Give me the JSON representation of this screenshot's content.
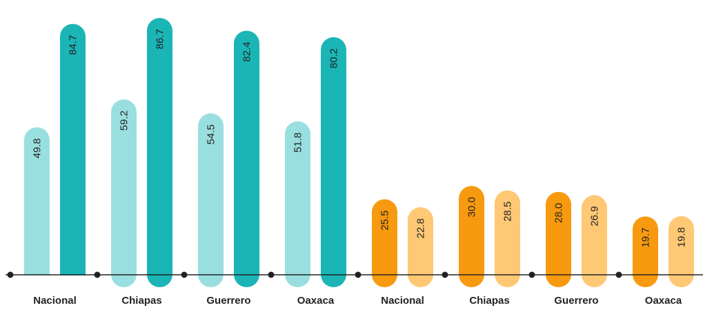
{
  "chart_data": {
    "type": "bar",
    "title": "",
    "xlabel": "",
    "ylabel": "",
    "ylim": [
      0,
      100
    ],
    "grid": false,
    "legend": "none",
    "groups": [
      {
        "categories": [
          "Nacional",
          "Chiapas",
          "Guerrero",
          "Oaxaca"
        ],
        "series": [
          {
            "values": [
              49.8,
              59.2,
              54.5,
              51.8
            ],
            "color": "#9ADFDF"
          },
          {
            "values": [
              84.7,
              86.7,
              82.4,
              80.2
            ],
            "color": "#1BB5B6"
          }
        ]
      },
      {
        "categories": [
          "Nacional",
          "Chiapas",
          "Guerrero",
          "Oaxaca"
        ],
        "series": [
          {
            "values": [
              25.5,
              30.0,
              28.0,
              19.7
            ],
            "color": "#F79A0F"
          },
          {
            "values": [
              22.8,
              28.5,
              26.9,
              19.8
            ],
            "color": "#FFC875"
          }
        ]
      }
    ],
    "axis_color": "#222222",
    "label_color": "#222222"
  }
}
